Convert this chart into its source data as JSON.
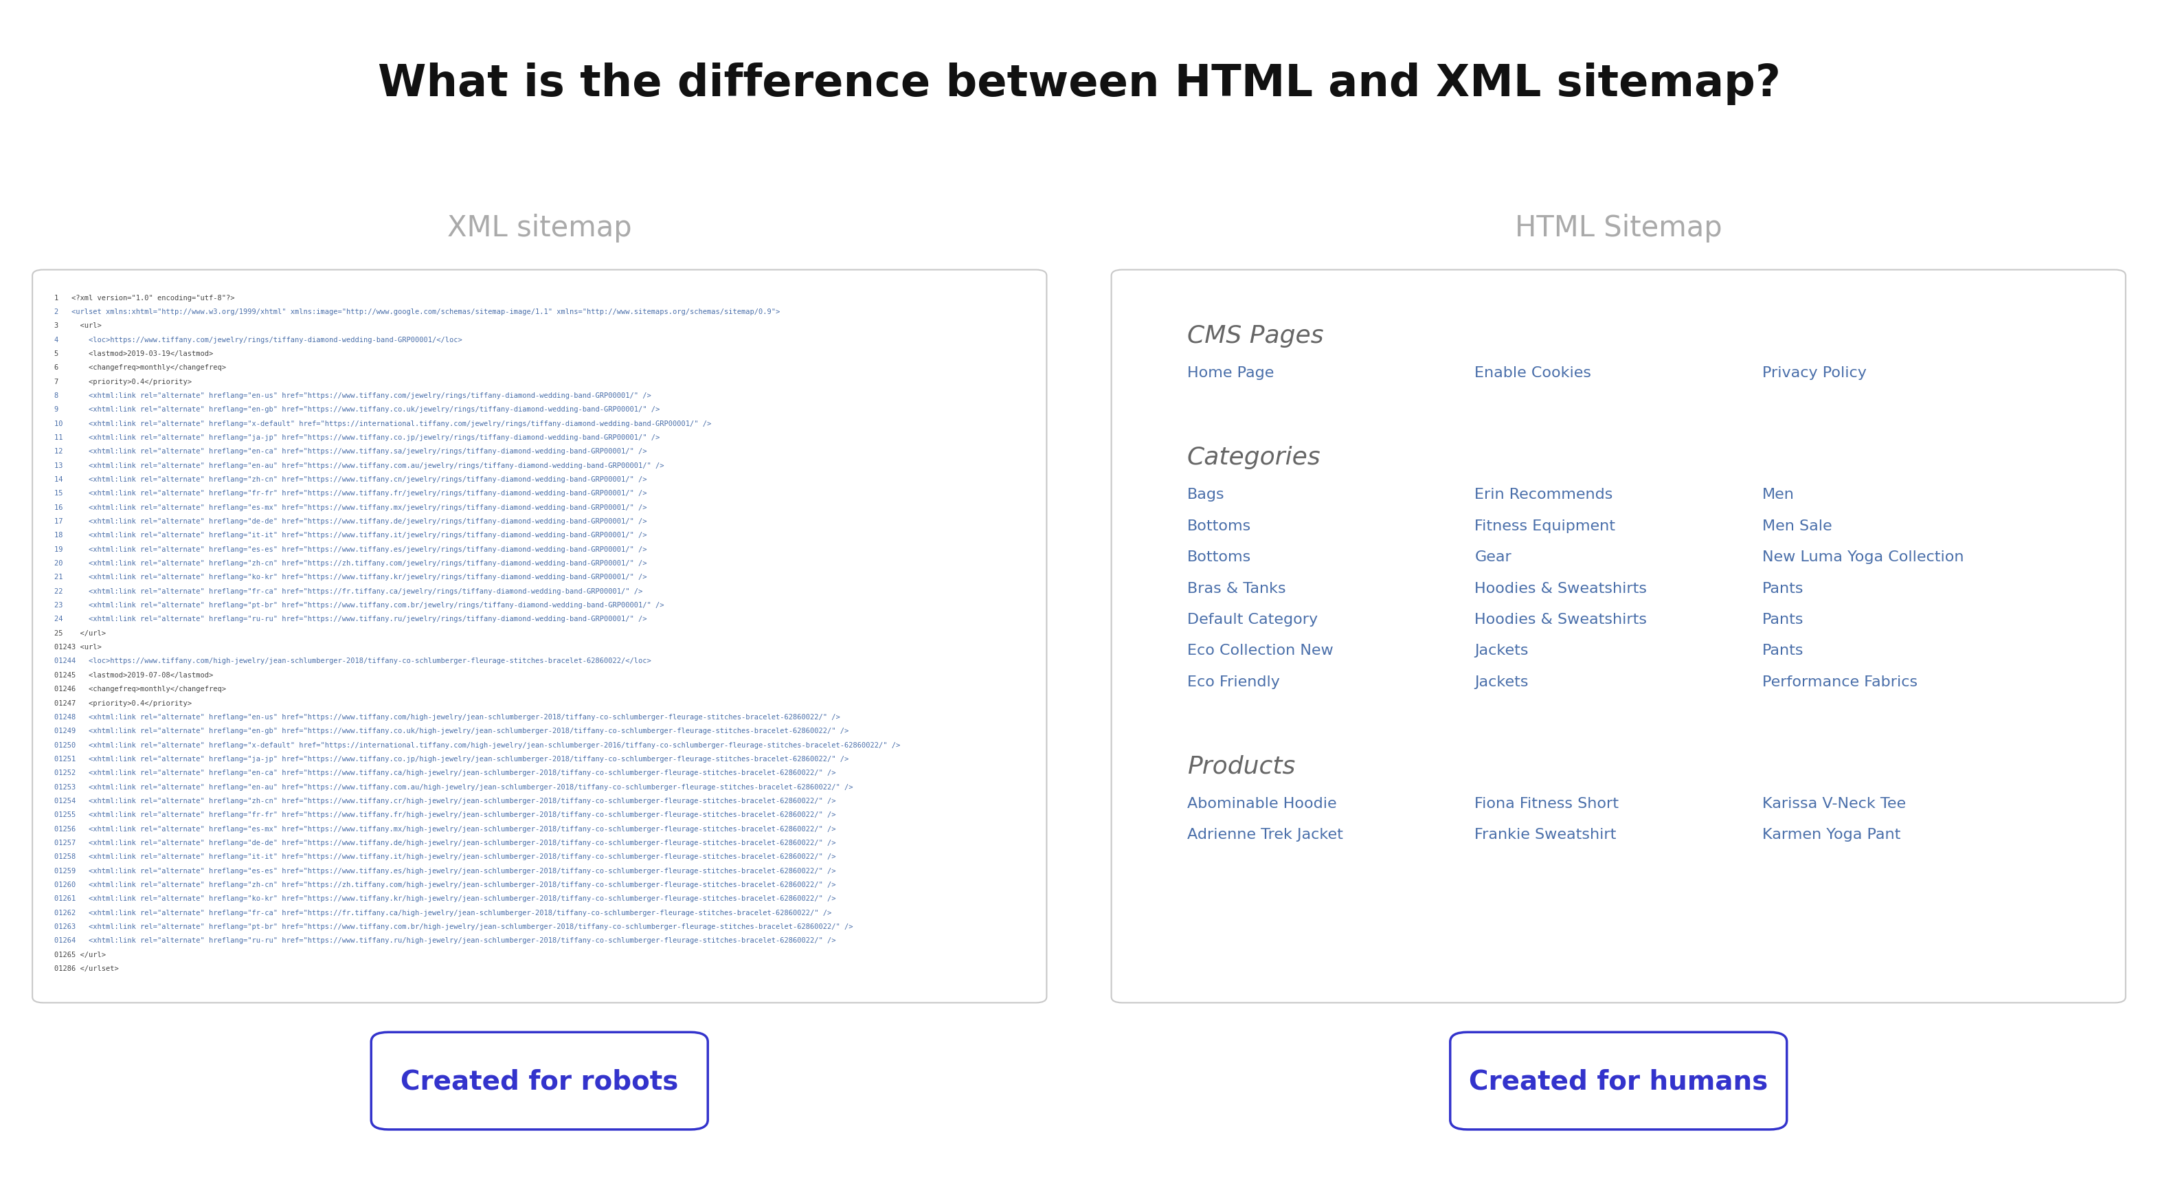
{
  "title": "What is the difference between HTML and XML sitemap?",
  "title_fontsize": 46,
  "title_color": "#111111",
  "title_fontweight": "bold",
  "bg_color": "#ffffff",
  "left_label": "XML sitemap",
  "right_label": "HTML Sitemap",
  "label_color": "#aaaaaa",
  "label_fontsize": 30,
  "left_badge": "Created for robots",
  "right_badge": "Created for humans",
  "badge_text_color": "#3333cc",
  "badge_border_color": "#3333cc",
  "badge_fontsize": 28,
  "badge_fontweight": "bold",
  "xml_lines": [
    "1   <?xml version=\"1.0\" encoding=\"utf-8\"?>",
    "2   <urlset xmlns:xhtml=\"http://www.w3.org/1999/xhtml\" xmlns:image=\"http://www.google.com/schemas/sitemap-image/1.1\" xmlns=\"http://www.sitemaps.org/schemas/sitemap/0.9\">",
    "3     <url>",
    "4       <loc>https://www.tiffany.com/jewelry/rings/tiffany-diamond-wedding-band-GRP00001/</loc>",
    "5       <lastmod>2019-03-19</lastmod>",
    "6       <changefreq>monthly</changefreq>",
    "7       <priority>0.4</priority>",
    "8       <xhtml:link rel=\"alternate\" hreflang=\"en-us\" href=\"https://www.tiffany.com/jewelry/rings/tiffany-diamond-wedding-band-GRP00001/\" />",
    "9       <xhtml:link rel=\"alternate\" hreflang=\"en-gb\" href=\"https://www.tiffany.co.uk/jewelry/rings/tiffany-diamond-wedding-band-GRP00001/\" />",
    "10      <xhtml:link rel=\"alternate\" hreflang=\"x-default\" href=\"https://international.tiffany.com/jewelry/rings/tiffany-diamond-wedding-band-GRP00001/\" />",
    "11      <xhtml:link rel=\"alternate\" hreflang=\"ja-jp\" href=\"https://www.tiffany.co.jp/jewelry/rings/tiffany-diamond-wedding-band-GRP00001/\" />",
    "12      <xhtml:link rel=\"alternate\" hreflang=\"en-ca\" href=\"https://www.tiffany.sa/jewelry/rings/tiffany-diamond-wedding-band-GRP00001/\" />",
    "13      <xhtml:link rel=\"alternate\" hreflang=\"en-au\" href=\"https://www.tiffany.com.au/jewelry/rings/tiffany-diamond-wedding-band-GRP00001/\" />",
    "14      <xhtml:link rel=\"alternate\" hreflang=\"zh-cn\" href=\"https://www.tiffany.cn/jewelry/rings/tiffany-diamond-wedding-band-GRP00001/\" />",
    "15      <xhtml:link rel=\"alternate\" hreflang=\"fr-fr\" href=\"https://www.tiffany.fr/jewelry/rings/tiffany-diamond-wedding-band-GRP00001/\" />",
    "16      <xhtml:link rel=\"alternate\" hreflang=\"es-mx\" href=\"https://www.tiffany.mx/jewelry/rings/tiffany-diamond-wedding-band-GRP00001/\" />",
    "17      <xhtml:link rel=\"alternate\" hreflang=\"de-de\" href=\"https://www.tiffany.de/jewelry/rings/tiffany-diamond-wedding-band-GRP00001/\" />",
    "18      <xhtml:link rel=\"alternate\" hreflang=\"it-it\" href=\"https://www.tiffany.it/jewelry/rings/tiffany-diamond-wedding-band-GRP00001/\" />",
    "19      <xhtml:link rel=\"alternate\" hreflang=\"es-es\" href=\"https://www.tiffany.es/jewelry/rings/tiffany-diamond-wedding-band-GRP00001/\" />",
    "20      <xhtml:link rel=\"alternate\" hreflang=\"zh-cn\" href=\"https://zh.tiffany.com/jewelry/rings/tiffany-diamond-wedding-band-GRP00001/\" />",
    "21      <xhtml:link rel=\"alternate\" hreflang=\"ko-kr\" href=\"https://www.tiffany.kr/jewelry/rings/tiffany-diamond-wedding-band-GRP00001/\" />",
    "22      <xhtml:link rel=\"alternate\" hreflang=\"fr-ca\" href=\"https://fr.tiffany.ca/jewelry/rings/tiffany-diamond-wedding-band-GRP00001/\" />",
    "23      <xhtml:link rel=\"alternate\" hreflang=\"pt-br\" href=\"https://www.tiffany.com.br/jewelry/rings/tiffany-diamond-wedding-band-GRP00001/\" />",
    "24      <xhtml:link rel=\"alternate\" hreflang=\"ru-ru\" href=\"https://www.tiffany.ru/jewelry/rings/tiffany-diamond-wedding-band-GRP00001/\" />",
    "25    </url>",
    "01243 <url>",
    "01244   <loc>https://www.tiffany.com/high-jewelry/jean-schlumberger-2018/tiffany-co-schlumberger-fleurage-stitches-bracelet-62860022/</loc>",
    "01245   <lastmod>2019-07-08</lastmod>",
    "01246   <changefreq>monthly</changefreq>",
    "01247   <priority>0.4</priority>",
    "01248   <xhtml:link rel=\"alternate\" hreflang=\"en-us\" href=\"https://www.tiffany.com/high-jewelry/jean-schlumberger-2018/tiffany-co-schlumberger-fleurage-stitches-bracelet-62860022/\" />",
    "01249   <xhtml:link rel=\"alternate\" hreflang=\"en-gb\" href=\"https://www.tiffany.co.uk/high-jewelry/jean-schlumberger-2018/tiffany-co-schlumberger-fleurage-stitches-bracelet-62860022/\" />",
    "01250   <xhtml:link rel=\"alternate\" hreflang=\"x-default\" href=\"https://international.tiffany.com/high-jewelry/jean-schlumberger-2016/tiffany-co-schlumberger-fleurage-stitches-bracelet-62860022/\" />",
    "01251   <xhtml:link rel=\"alternate\" hreflang=\"ja-jp\" href=\"https://www.tiffany.co.jp/high-jewelry/jean-schlumberger-2018/tiffany-co-schlumberger-fleurage-stitches-bracelet-62860022/\" />",
    "01252   <xhtml:link rel=\"alternate\" hreflang=\"en-ca\" href=\"https://www.tiffany.ca/high-jewelry/jean-schlumberger-2018/tiffany-co-schlumberger-fleurage-stitches-bracelet-62860022/\" />",
    "01253   <xhtml:link rel=\"alternate\" hreflang=\"en-au\" href=\"https://www.tiffany.com.au/high-jewelry/jean-schlumberger-2018/tiffany-co-schlumberger-fleurage-stitches-bracelet-62860022/\" />",
    "01254   <xhtml:link rel=\"alternate\" hreflang=\"zh-cn\" href=\"https://www.tiffany.cr/high-jewelry/jean-schlumberger-2018/tiffany-co-schlumberger-fleurage-stitches-bracelet-62860022/\" />",
    "01255   <xhtml:link rel=\"alternate\" hreflang=\"fr-fr\" href=\"https://www.tiffany.fr/high-jewelry/jean-schlumberger-2018/tiffany-co-schlumberger-fleurage-stitches-bracelet-62860022/\" />",
    "01256   <xhtml:link rel=\"alternate\" hreflang=\"es-mx\" href=\"https://www.tiffany.mx/high-jewelry/jean-schlumberger-2018/tiffany-co-schlumberger-fleurage-stitches-bracelet-62860022/\" />",
    "01257   <xhtml:link rel=\"alternate\" hreflang=\"de-de\" href=\"https://www.tiffany.de/high-jewelry/jean-schlumberger-2018/tiffany-co-schlumberger-fleurage-stitches-bracelet-62860022/\" />",
    "01258   <xhtml:link rel=\"alternate\" hreflang=\"it-it\" href=\"https://www.tiffany.it/high-jewelry/jean-schlumberger-2018/tiffany-co-schlumberger-fleurage-stitches-bracelet-62860022/\" />",
    "01259   <xhtml:link rel=\"alternate\" hreflang=\"es-es\" href=\"https://www.tiffany.es/high-jewelry/jean-schlumberger-2018/tiffany-co-schlumberger-fleurage-stitches-bracelet-62860022/\" />",
    "01260   <xhtml:link rel=\"alternate\" hreflang=\"zh-cn\" href=\"https://zh.tiffany.com/high-jewelry/jean-schlumberger-2018/tiffany-co-schlumberger-fleurage-stitches-bracelet-62860022/\" />",
    "01261   <xhtml:link rel=\"alternate\" hreflang=\"ko-kr\" href=\"https://www.tiffany.kr/high-jewelry/jean-schlumberger-2018/tiffany-co-schlumberger-fleurage-stitches-bracelet-62860022/\" />",
    "01262   <xhtml:link rel=\"alternate\" hreflang=\"fr-ca\" href=\"https://fr.tiffany.ca/high-jewelry/jean-schlumberger-2018/tiffany-co-schlumberger-fleurage-stitches-bracelet-62860022/\" />",
    "01263   <xhtml:link rel=\"alternate\" hreflang=\"pt-br\" href=\"https://www.tiffany.com.br/high-jewelry/jean-schlumberger-2018/tiffany-co-schlumberger-fleurage-stitches-bracelet-62860022/\" />",
    "01264   <xhtml:link rel=\"alternate\" hreflang=\"ru-ru\" href=\"https://www.tiffany.ru/high-jewelry/jean-schlumberger-2018/tiffany-co-schlumberger-fleurage-stitches-bracelet-62860022/\" />",
    "01265 </url>",
    "01286 </urlset>"
  ],
  "html_sections": {
    "CMS Pages": {
      "columns": [
        [
          "Home Page"
        ],
        [
          "Enable Cookies"
        ],
        [
          "Privacy Policy"
        ]
      ]
    },
    "Categories": {
      "columns": [
        [
          "Bags",
          "Bottoms",
          "Bottoms",
          "Bras & Tanks",
          "Default Category",
          "Eco Collection New",
          "Eco Friendly"
        ],
        [
          "Erin Recommends",
          "Fitness Equipment",
          "Gear",
          "Hoodies & Sweatshirts",
          "Hoodies & Sweatshirts",
          "Jackets",
          "Jackets"
        ],
        [
          "Men",
          "Men Sale",
          "New Luma Yoga Collection",
          "Pants",
          "Pants",
          "Pants",
          "Performance Fabrics"
        ]
      ]
    },
    "Products": {
      "columns": [
        [
          "Abominable Hoodie",
          "Adrienne Trek Jacket"
        ],
        [
          "Fiona Fitness Short",
          "Frankie Sweatshirt"
        ],
        [
          "Karissa V-Neck Tee",
          "Karmen Yoga Pant"
        ]
      ]
    }
  },
  "html_link_color": "#4a6faa",
  "html_section_header_color": "#666666",
  "html_section_header_fontsize": 26,
  "html_link_fontsize": 16,
  "panel_bg": "#ffffff",
  "panel_border_color": "#c8c8c8",
  "xml_text_color": "#444444",
  "xml_link_color": "#4a6faa",
  "xml_fontsize": 7.5,
  "xml_line_number_color": "#888888"
}
